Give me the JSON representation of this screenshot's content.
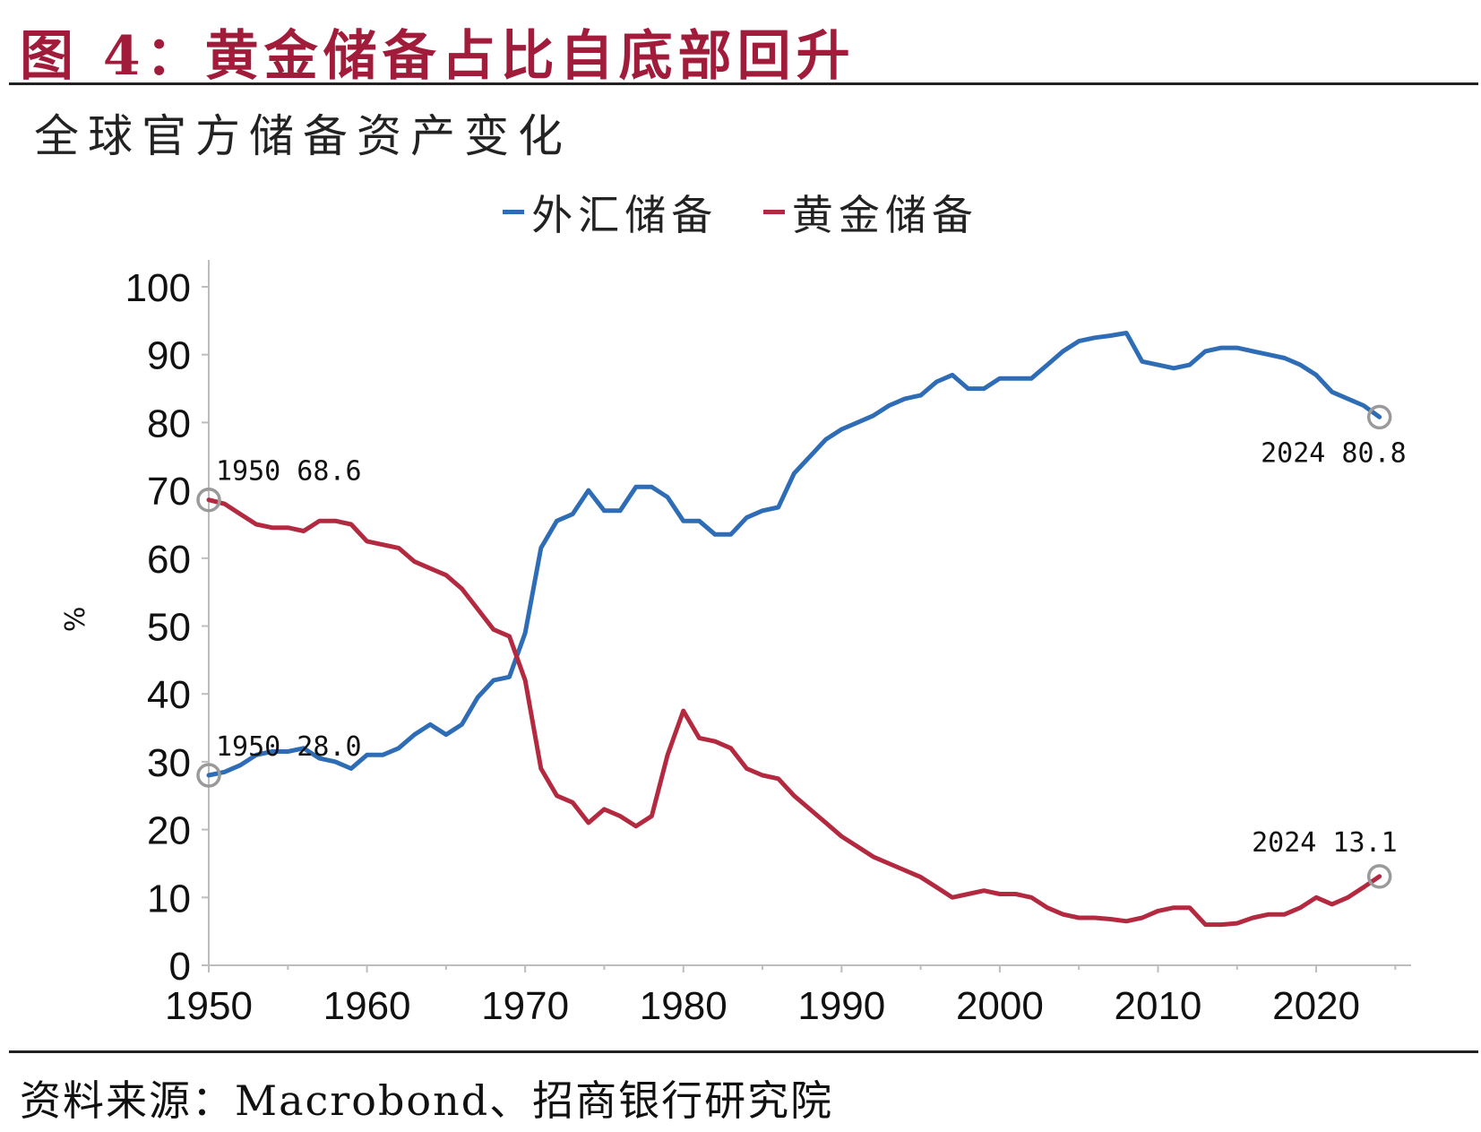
{
  "figure": {
    "title": "图 4：黄金储备占比自底部回升",
    "source": "资料来源：Macrobond、招商银行研究院"
  },
  "chart_data": {
    "type": "line",
    "title": "全球官方储备资产变化",
    "ylabel": "%",
    "xlim": [
      1950,
      2026
    ],
    "ylim": [
      0,
      100
    ],
    "x_ticks": [
      "1950",
      "1960",
      "1970",
      "1980",
      "1990",
      "2000",
      "2010",
      "2020"
    ],
    "y_ticks": [
      "0",
      "10",
      "20",
      "30",
      "40",
      "50",
      "60",
      "70",
      "80",
      "90",
      "100"
    ],
    "legend_position": "top-center",
    "series": [
      {
        "name": "外汇储备",
        "color": "#2e6db5",
        "x": [
          1950,
          1951,
          1952,
          1953,
          1954,
          1955,
          1956,
          1957,
          1958,
          1959,
          1960,
          1961,
          1962,
          1963,
          1964,
          1965,
          1966,
          1967,
          1968,
          1969,
          1970,
          1971,
          1972,
          1973,
          1974,
          1975,
          1976,
          1977,
          1978,
          1979,
          1980,
          1981,
          1982,
          1983,
          1984,
          1985,
          1986,
          1987,
          1988,
          1989,
          1990,
          1991,
          1992,
          1993,
          1994,
          1995,
          1996,
          1997,
          1998,
          1999,
          2000,
          2001,
          2002,
          2003,
          2004,
          2005,
          2006,
          2007,
          2008,
          2009,
          2010,
          2011,
          2012,
          2013,
          2014,
          2015,
          2016,
          2017,
          2018,
          2019,
          2020,
          2021,
          2022,
          2023,
          2024
        ],
        "values": [
          28.0,
          28.5,
          29.5,
          31.0,
          31.5,
          31.5,
          32.0,
          30.5,
          30.0,
          29.0,
          31.0,
          31.0,
          32.0,
          34.0,
          35.5,
          34.0,
          35.5,
          39.5,
          42.0,
          42.5,
          49.0,
          61.5,
          65.5,
          66.5,
          70.0,
          67.0,
          67.0,
          70.5,
          70.5,
          69.0,
          65.5,
          65.5,
          63.5,
          63.5,
          66.0,
          67.0,
          67.5,
          72.5,
          75.0,
          77.5,
          79.0,
          80.0,
          81.0,
          82.5,
          83.5,
          84.0,
          86.0,
          87.0,
          85.0,
          85.0,
          86.5,
          86.5,
          86.5,
          88.5,
          90.5,
          92.0,
          92.5,
          92.8,
          93.2,
          89.0,
          88.5,
          88.0,
          88.5,
          90.5,
          91.0,
          91.0,
          90.5,
          90.0,
          89.5,
          88.5,
          87.0,
          84.5,
          83.5,
          82.5,
          80.8
        ]
      },
      {
        "name": "黄金储备",
        "color": "#b32a40",
        "x": [
          1950,
          1951,
          1952,
          1953,
          1954,
          1955,
          1956,
          1957,
          1958,
          1959,
          1960,
          1961,
          1962,
          1963,
          1964,
          1965,
          1966,
          1967,
          1968,
          1969,
          1970,
          1971,
          1972,
          1973,
          1974,
          1975,
          1976,
          1977,
          1978,
          1979,
          1980,
          1981,
          1982,
          1983,
          1984,
          1985,
          1986,
          1987,
          1988,
          1989,
          1990,
          1991,
          1992,
          1993,
          1994,
          1995,
          1996,
          1997,
          1998,
          1999,
          2000,
          2001,
          2002,
          2003,
          2004,
          2005,
          2006,
          2007,
          2008,
          2009,
          2010,
          2011,
          2012,
          2013,
          2014,
          2015,
          2016,
          2017,
          2018,
          2019,
          2020,
          2021,
          2022,
          2023,
          2024
        ],
        "values": [
          68.6,
          68.0,
          66.5,
          65.0,
          64.5,
          64.5,
          64.0,
          65.5,
          65.5,
          65.0,
          62.5,
          62.0,
          61.5,
          59.5,
          58.5,
          57.5,
          55.5,
          52.5,
          49.5,
          48.5,
          42.0,
          29.0,
          25.0,
          24.0,
          21.0,
          23.0,
          22.0,
          20.5,
          22.0,
          31.0,
          37.5,
          33.5,
          33.0,
          32.0,
          29.0,
          28.0,
          27.5,
          25.0,
          23.0,
          21.0,
          19.0,
          17.5,
          16.0,
          15.0,
          14.0,
          13.0,
          11.5,
          10.0,
          10.5,
          11.0,
          10.5,
          10.5,
          10.0,
          8.5,
          7.5,
          7.0,
          7.0,
          6.8,
          6.5,
          7.0,
          8.0,
          8.5,
          8.5,
          6.0,
          6.0,
          6.2,
          7.0,
          7.5,
          7.5,
          8.5,
          10.0,
          9.0,
          10.0,
          11.5,
          13.1
        ]
      }
    ],
    "annotations": [
      {
        "text": "1950  68.6",
        "x": 1950,
        "y": 68.6,
        "series": 1
      },
      {
        "text": "1950  28.0",
        "x": 1950,
        "y": 28.0,
        "series": 0
      },
      {
        "text": "2024  80.8",
        "x": 2024,
        "y": 80.8,
        "series": 0
      },
      {
        "text": "2024  13.1",
        "x": 2024,
        "y": 13.1,
        "series": 1
      }
    ]
  }
}
